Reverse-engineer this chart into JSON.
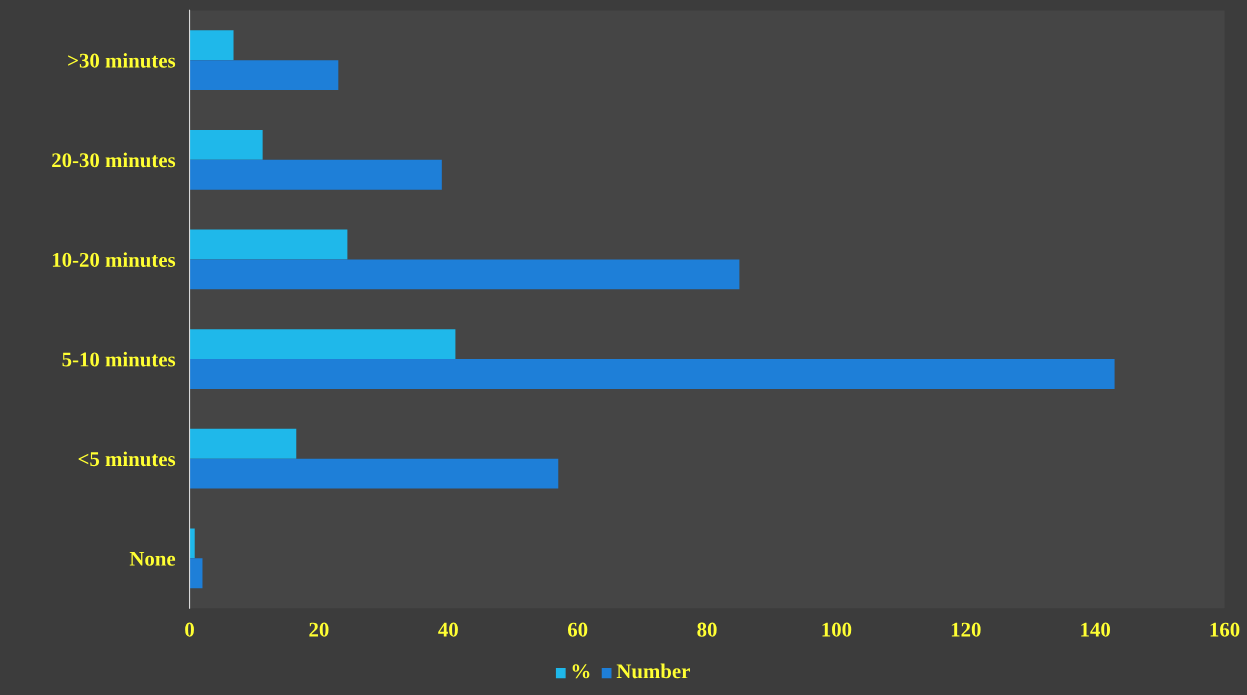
{
  "chart_data": {
    "type": "bar",
    "orientation": "horizontal",
    "categories": [
      ">30 minutes",
      "20-30 minutes",
      "10-20 minutes",
      "5-10 minutes",
      "<5 minutes",
      "None"
    ],
    "series": [
      {
        "name": "%",
        "color": "#1fb8ea",
        "values": [
          6.8,
          11.3,
          24.4,
          41.1,
          16.5,
          0.8
        ]
      },
      {
        "name": "Number",
        "color": "#1e7fd8",
        "values": [
          23,
          39,
          85,
          143,
          57,
          2
        ]
      }
    ],
    "xlim": [
      0,
      160
    ],
    "xticks": [
      0,
      20,
      40,
      60,
      80,
      100,
      120,
      140,
      160
    ],
    "grid": false,
    "legend": "bottom"
  }
}
